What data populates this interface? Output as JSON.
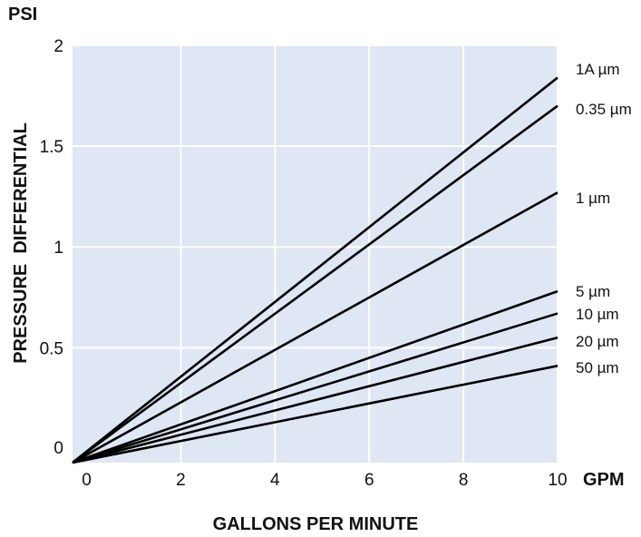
{
  "chart_data": {
    "type": "line",
    "y_unit_label": "PSI",
    "x_unit_label": "GPM",
    "xlabel": "GALLONS PER MINUTE",
    "ylabel": "PRESSURE  DIFFERENTIAL",
    "xlim": [
      -0.3,
      10
    ],
    "ylim": [
      -0.07,
      2
    ],
    "x_ticks": [
      0,
      2,
      4,
      6,
      8,
      10
    ],
    "x_tick_labels": [
      "0",
      "2",
      "4",
      "6",
      "8",
      "10"
    ],
    "y_ticks": [
      0,
      0.5,
      1,
      1.5,
      2
    ],
    "y_tick_labels": [
      "0",
      "0.5",
      "1",
      "1.5",
      "2"
    ],
    "grid": true,
    "plot_background": "#dfe6f4",
    "grid_color": "#ffffff",
    "line_color": "#000000",
    "series": [
      {
        "name": "1A µm",
        "x": [
          -0.3,
          10
        ],
        "y": [
          -0.07,
          1.84
        ]
      },
      {
        "name": "0.35 µm",
        "x": [
          -0.3,
          10
        ],
        "y": [
          -0.07,
          1.7
        ]
      },
      {
        "name": "1 µm",
        "x": [
          -0.3,
          10
        ],
        "y": [
          -0.07,
          1.27
        ]
      },
      {
        "name": "5 µm",
        "x": [
          -0.3,
          10
        ],
        "y": [
          -0.07,
          0.78
        ]
      },
      {
        "name": "10 µm",
        "x": [
          -0.3,
          10
        ],
        "y": [
          -0.07,
          0.67
        ]
      },
      {
        "name": "20 µm",
        "x": [
          -0.3,
          10
        ],
        "y": [
          -0.07,
          0.55
        ]
      },
      {
        "name": "50 µm",
        "x": [
          -0.3,
          10
        ],
        "y": [
          -0.07,
          0.41
        ]
      }
    ]
  }
}
